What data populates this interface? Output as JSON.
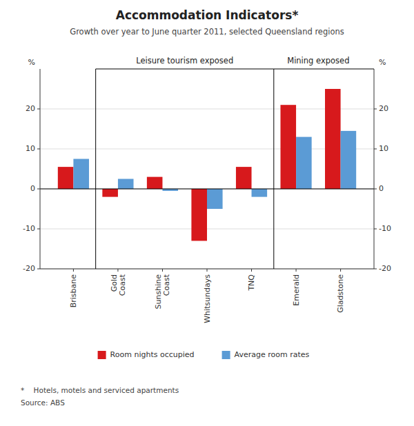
{
  "chart_data": {
    "type": "bar",
    "title": "Accommodation Indicators*",
    "subtitle": "Growth over year to June quarter 2011, selected Queensland regions",
    "categories": [
      "Brisbane",
      "Gold\nCoast",
      "Sunshine\nCoast",
      "Whitsundays",
      "TNQ",
      "Emerald",
      "Gladstone"
    ],
    "series": [
      {
        "name": "Room nights occupied",
        "color": "#D7191C",
        "values": [
          5.5,
          -2.0,
          3.0,
          -13.0,
          5.5,
          21.0,
          25.0
        ]
      },
      {
        "name": "Average room rates",
        "color": "#5B9BD5",
        "values": [
          7.5,
          2.5,
          -0.5,
          -5.0,
          -2.0,
          13.0,
          14.5
        ]
      }
    ],
    "ylim": [
      -20,
      30
    ],
    "yticks": [
      -20,
      -10,
      0,
      10,
      20
    ],
    "y2lim": [
      -20,
      30
    ],
    "y2ticks": [
      -20,
      -10,
      0,
      10,
      20
    ],
    "ylabel": "%",
    "y2label": "%",
    "annotations": [
      {
        "text": "Leisure tourism exposed",
        "span": [
          1,
          4
        ]
      },
      {
        "text": "Mining exposed",
        "span": [
          5,
          6
        ]
      }
    ],
    "footnotes": [
      "*    Hotels, motels and serviced apartments",
      "Source: ABS"
    ],
    "grid": true,
    "legend": "bottom"
  }
}
